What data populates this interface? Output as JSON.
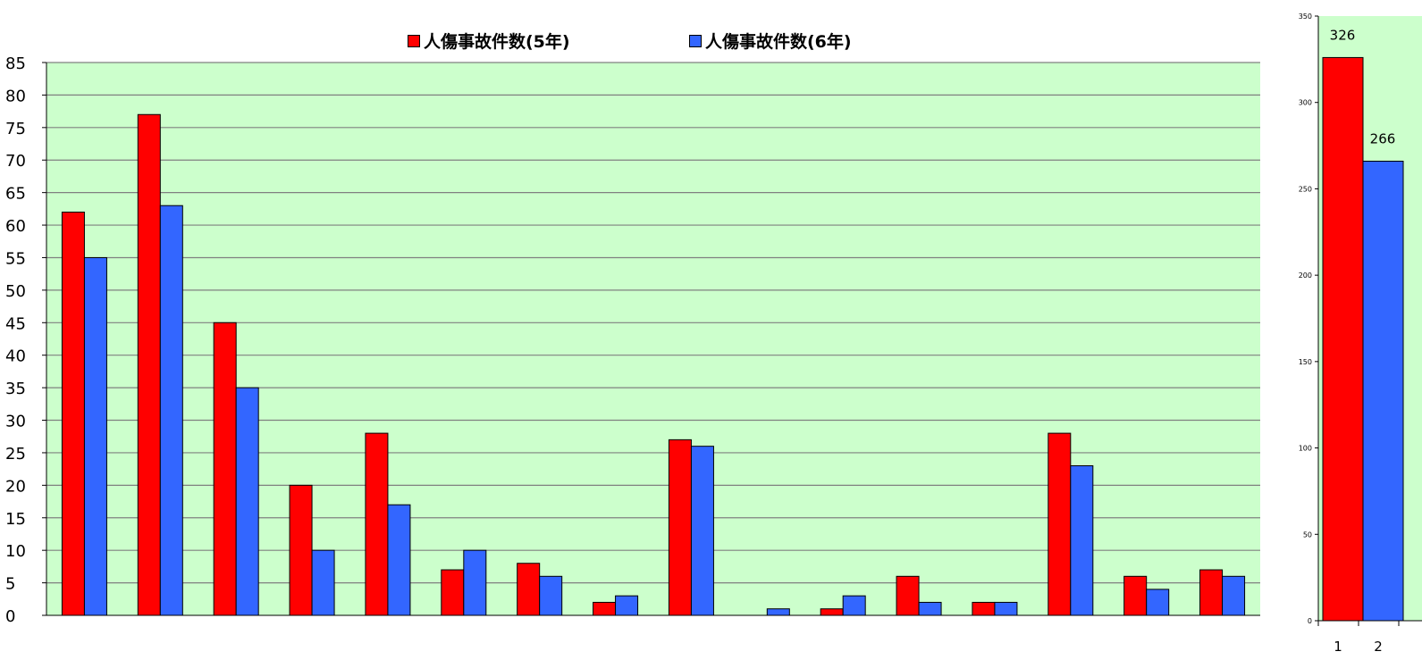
{
  "chart_data": [
    {
      "type": "bar",
      "categories": [
        "",
        "",
        "",
        "",
        "",
        "",
        "",
        "",
        "",
        "",
        "",
        "",
        "",
        "",
        "",
        ""
      ],
      "series": [
        {
          "name": "人傷事故件数(5年)",
          "color": "#ff0000",
          "values": [
            62,
            77,
            45,
            20,
            28,
            7,
            8,
            2,
            27,
            0,
            1,
            6,
            2,
            28,
            6,
            7
          ]
        },
        {
          "name": "人傷事故件数(6年)",
          "color": "#3366ff",
          "values": [
            55,
            63,
            35,
            10,
            17,
            10,
            6,
            3,
            26,
            1,
            3,
            2,
            2,
            23,
            4,
            6
          ]
        }
      ],
      "ylim": [
        0,
        85
      ],
      "yticks": [
        0,
        5,
        10,
        15,
        20,
        25,
        30,
        35,
        40,
        45,
        50,
        55,
        60,
        65,
        70,
        75,
        80,
        85
      ],
      "grid": true,
      "legend": "top",
      "plot_background": "#ccffcc"
    },
    {
      "type": "bar",
      "categories": [
        "1",
        "2"
      ],
      "series": [
        {
          "values": [
            326,
            266
          ],
          "colors": [
            "#ff0000",
            "#3366ff"
          ]
        }
      ],
      "data_labels": [
        "326",
        "266"
      ],
      "ylim": [
        0,
        350
      ],
      "yticks": [
        0,
        50,
        100,
        150,
        200,
        250,
        300,
        350
      ],
      "grid": false,
      "plot_background": "#ccffcc"
    }
  ]
}
